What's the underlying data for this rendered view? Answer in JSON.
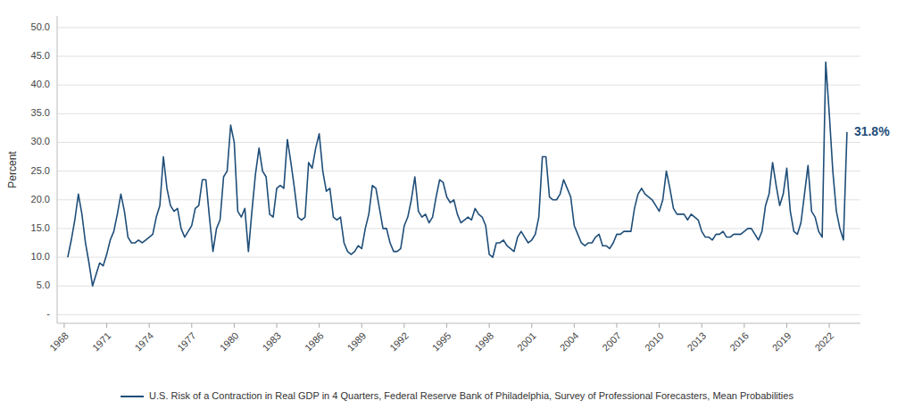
{
  "chart_data": {
    "type": "line",
    "y_label": "Percent",
    "annotation": "31.8%",
    "grid": true,
    "legend": "bottom",
    "xlim": [
      1967.5,
      2024.2
    ],
    "xticks": [
      1968,
      1971,
      1974,
      1977,
      1980,
      1983,
      1986,
      1989,
      1992,
      1995,
      1998,
      2001,
      2004,
      2007,
      2010,
      2013,
      2016,
      2019,
      2022
    ],
    "ylim": [
      -1.5,
      52
    ],
    "yticks": [
      {
        "value": 0,
        "label": "-"
      },
      {
        "value": 5.0,
        "label": "5.0"
      },
      {
        "value": 10.0,
        "label": "10.0"
      },
      {
        "value": 15.0,
        "label": "15.0"
      },
      {
        "value": 20.0,
        "label": "20.0"
      },
      {
        "value": 25.0,
        "label": "25.0"
      },
      {
        "value": 30.0,
        "label": "30.0"
      },
      {
        "value": 35.0,
        "label": "35.0"
      },
      {
        "value": 40.0,
        "label": "40.0"
      },
      {
        "value": 45.0,
        "label": "45.0"
      },
      {
        "value": 50.0,
        "label": "50.0"
      }
    ],
    "x": [
      1968.25,
      1968.5,
      1968.75,
      1969,
      1969.25,
      1969.5,
      1969.75,
      1970,
      1970.25,
      1970.5,
      1970.75,
      1971,
      1971.25,
      1971.5,
      1971.75,
      1972,
      1972.25,
      1972.5,
      1972.75,
      1973,
      1973.25,
      1973.5,
      1973.75,
      1974,
      1974.25,
      1974.5,
      1974.75,
      1975,
      1975.25,
      1975.5,
      1975.75,
      1976,
      1976.25,
      1976.5,
      1976.75,
      1977,
      1977.25,
      1977.5,
      1977.75,
      1978,
      1978.25,
      1978.5,
      1978.75,
      1979,
      1979.25,
      1979.5,
      1979.75,
      1980,
      1980.25,
      1980.5,
      1980.75,
      1981,
      1981.25,
      1981.5,
      1981.75,
      1982,
      1982.25,
      1982.5,
      1982.75,
      1983,
      1983.25,
      1983.5,
      1983.75,
      1984,
      1984.25,
      1984.5,
      1984.75,
      1985,
      1985.25,
      1985.5,
      1985.75,
      1986,
      1986.25,
      1986.5,
      1986.75,
      1987,
      1987.25,
      1987.5,
      1987.75,
      1988,
      1988.25,
      1988.5,
      1988.75,
      1989,
      1989.25,
      1989.5,
      1989.75,
      1990,
      1990.25,
      1990.5,
      1990.75,
      1991,
      1991.25,
      1991.5,
      1991.75,
      1992,
      1992.25,
      1992.5,
      1992.75,
      1993,
      1993.25,
      1993.5,
      1993.75,
      1994,
      1994.25,
      1994.5,
      1994.75,
      1995,
      1995.25,
      1995.5,
      1995.75,
      1996,
      1996.25,
      1996.5,
      1996.75,
      1997,
      1997.25,
      1997.5,
      1997.75,
      1998,
      1998.25,
      1998.5,
      1998.75,
      1999,
      1999.25,
      1999.5,
      1999.75,
      2000,
      2000.25,
      2000.5,
      2000.75,
      2001,
      2001.25,
      2001.5,
      2001.75,
      2002,
      2002.25,
      2002.5,
      2002.75,
      2003,
      2003.25,
      2003.5,
      2003.75,
      2004,
      2004.25,
      2004.5,
      2004.75,
      2005,
      2005.25,
      2005.5,
      2005.75,
      2006,
      2006.25,
      2006.5,
      2006.75,
      2007,
      2007.25,
      2007.5,
      2007.75,
      2008,
      2008.25,
      2008.5,
      2008.75,
      2009,
      2009.25,
      2009.5,
      2009.75,
      2010,
      2010.25,
      2010.5,
      2010.75,
      2011,
      2011.25,
      2011.5,
      2011.75,
      2012,
      2012.25,
      2012.5,
      2012.75,
      2013,
      2013.25,
      2013.5,
      2013.75,
      2014,
      2014.25,
      2014.5,
      2014.75,
      2015,
      2015.25,
      2015.5,
      2015.75,
      2016,
      2016.25,
      2016.5,
      2016.75,
      2017,
      2017.25,
      2017.5,
      2017.75,
      2018,
      2018.25,
      2018.5,
      2018.75,
      2019,
      2019.25,
      2019.5,
      2019.75,
      2020,
      2020.25,
      2020.5,
      2020.75,
      2021,
      2021.25,
      2021.5,
      2021.75,
      2022,
      2022.25,
      2022.5,
      2022.75,
      2023,
      2023.25
    ],
    "series": [
      {
        "name": "U.S. Risk of a Contraction in Real GDP in 4 Quarters, Federal Reserve Bank of Philadelphia, Survey of Professional Forecasters, Mean Probabilities",
        "color": "#1F4E79",
        "values": [
          10.0,
          13.0,
          16.5,
          21.0,
          17.5,
          12.5,
          9.0,
          5.0,
          7.0,
          9.0,
          8.5,
          10.5,
          13.0,
          14.5,
          17.5,
          21.0,
          18.0,
          13.5,
          12.5,
          12.5,
          13.0,
          12.5,
          13.0,
          13.5,
          14.0,
          17.0,
          19.0,
          27.5,
          22.0,
          19.0,
          18.0,
          18.5,
          15.0,
          13.5,
          14.5,
          15.5,
          18.5,
          19.0,
          23.5,
          23.5,
          17.0,
          11.0,
          15.0,
          16.5,
          24.0,
          25.0,
          33.0,
          30.0,
          18.0,
          17.0,
          18.5,
          11.0,
          18.0,
          24.5,
          29.0,
          25.0,
          24.0,
          17.5,
          17.0,
          22.0,
          22.5,
          22.0,
          30.5,
          26.5,
          22.0,
          17.0,
          16.5,
          17.0,
          26.5,
          25.5,
          29.0,
          31.5,
          25.0,
          21.5,
          22.0,
          17.0,
          16.5,
          17.0,
          12.5,
          11.0,
          10.5,
          11.0,
          12.0,
          11.5,
          15.0,
          17.5,
          22.5,
          22.0,
          18.5,
          15.0,
          15.0,
          12.5,
          11.0,
          11.0,
          11.5,
          15.5,
          17.0,
          20.0,
          24.0,
          18.0,
          17.0,
          17.5,
          16.0,
          17.0,
          20.5,
          23.5,
          23.0,
          20.5,
          19.5,
          20.0,
          17.5,
          16.0,
          16.5,
          17.0,
          16.5,
          18.5,
          17.5,
          17.0,
          15.5,
          10.5,
          10.0,
          12.5,
          12.5,
          13.0,
          12.0,
          11.5,
          11.0,
          13.5,
          14.5,
          13.5,
          12.5,
          13.0,
          14.0,
          17.0,
          27.5,
          27.5,
          20.5,
          20.0,
          20.0,
          21.0,
          23.5,
          22.0,
          20.5,
          15.5,
          14.0,
          12.5,
          12.0,
          12.5,
          12.5,
          13.5,
          14.0,
          12.0,
          12.0,
          11.5,
          12.5,
          14.0,
          14.0,
          14.5,
          14.5,
          14.5,
          18.5,
          21.0,
          22.0,
          21.0,
          20.5,
          20.0,
          19.0,
          18.0,
          20.0,
          25.0,
          22.0,
          18.5,
          17.5,
          17.5,
          17.5,
          16.5,
          17.5,
          17.0,
          16.5,
          14.5,
          13.5,
          13.5,
          13.0,
          14.0,
          14.0,
          14.5,
          13.5,
          13.5,
          14.0,
          14.0,
          14.0,
          14.5,
          15.0,
          15.0,
          14.0,
          13.0,
          14.5,
          19.0,
          21.0,
          26.5,
          22.5,
          19.0,
          21.0,
          25.5,
          18.0,
          14.5,
          14.0,
          16.0,
          21.0,
          26.0,
          18.0,
          17.0,
          14.5,
          13.5,
          44.0,
          35.0,
          25.0,
          18.0,
          15.0,
          13.0,
          31.8
        ]
      }
    ]
  }
}
